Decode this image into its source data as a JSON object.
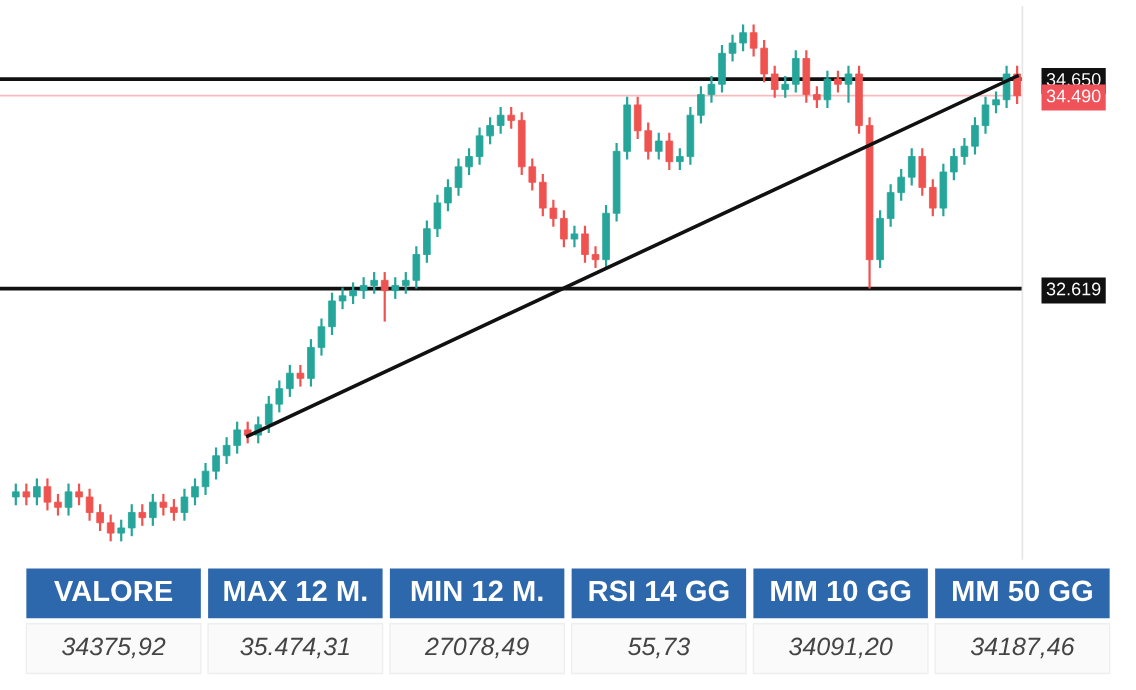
{
  "chart_data": [
    {
      "type": "candlestick",
      "categories": [
        null,
        null,
        null,
        null,
        null,
        null,
        null,
        null,
        null,
        null,
        null,
        null,
        null,
        null,
        null,
        null,
        null,
        null,
        null,
        null,
        null,
        null,
        null,
        null,
        null,
        null,
        null,
        null,
        null,
        null,
        null,
        null,
        null,
        null,
        null,
        null,
        null,
        null,
        null,
        null,
        null,
        null,
        null,
        null,
        null,
        null,
        null,
        null,
        null,
        null,
        null,
        null,
        null,
        null,
        null,
        null,
        null,
        null,
        null,
        null,
        null,
        null,
        null,
        null,
        null,
        null,
        null,
        null,
        null,
        null,
        null,
        null,
        null,
        null,
        null,
        null,
        null,
        null,
        null,
        null,
        null,
        null,
        null,
        null,
        null,
        null,
        null,
        null,
        null,
        null,
        null,
        null,
        null,
        null,
        null,
        null
      ],
      "colors": [
        "#26a69a",
        "#ef5350",
        "#26a69a",
        "#ef5350",
        "#ef5350",
        "#26a69a",
        "#ef5350",
        "#ef5350",
        "#ef5350",
        "#ef5350",
        "#26a69a",
        "#26a69a",
        "#ef5350",
        "#26a69a",
        "#ef5350",
        "#ef5350",
        "#26a69a",
        "#26a69a",
        "#26a69a",
        "#26a69a",
        "#26a69a",
        "#26a69a",
        "#ef5350",
        "#26a69a",
        "#26a69a",
        "#26a69a",
        "#26a69a",
        "#ef5350",
        "#26a69a",
        "#26a69a",
        "#26a69a",
        "#26a69a",
        "#26a69a",
        "#26a69a",
        "#26a69a",
        "#ef5350",
        "#26a69a",
        "#26a69a",
        "#26a69a",
        "#26a69a",
        "#26a69a",
        "#26a69a",
        "#26a69a",
        "#26a69a",
        "#26a69a",
        "#26a69a",
        "#26a69a",
        "#ef5350",
        "#ef5350",
        "#ef5350",
        "#ef5350",
        "#ef5350",
        "#ef5350",
        "#26a69a",
        "#ef5350",
        "#ef5350",
        "#26a69a",
        "#26a69a",
        "#26a69a",
        "#ef5350",
        "#ef5350",
        "#26a69a",
        "#ef5350",
        "#26a69a",
        "#26a69a",
        "#26a69a",
        "#26a69a",
        "#26a69a",
        "#26a69a",
        "#26a69a",
        "#ef5350",
        "#ef5350",
        "#ef5350",
        "#26a69a",
        "#26a69a",
        "#ef5350",
        "#ef5350",
        "#26a69a",
        "#ef5350",
        "#26a69a",
        "#ef5350",
        "#ef5350",
        "#26a69a",
        "#26a69a",
        "#26a69a",
        "#26a69a",
        "#ef5350",
        "#ef5350",
        "#26a69a",
        "#26a69a",
        "#26a69a",
        "#26a69a",
        "#26a69a",
        "#26a69a",
        "#26a69a",
        "#ef5350"
      ],
      "ohlc": [
        [
          30600,
          30730,
          30520,
          30650
        ],
        [
          30650,
          30730,
          30520,
          30600
        ],
        [
          30600,
          30780,
          30520,
          30700
        ],
        [
          30700,
          30780,
          30470,
          30550
        ],
        [
          30550,
          30630,
          30420,
          30500
        ],
        [
          30500,
          30730,
          30420,
          30650
        ],
        [
          30650,
          30730,
          30520,
          30600
        ],
        [
          30600,
          30680,
          30370,
          30450
        ],
        [
          30450,
          30530,
          30270,
          30350
        ],
        [
          30350,
          30430,
          30170,
          30250
        ],
        [
          30250,
          30380,
          30170,
          30300
        ],
        [
          30300,
          30530,
          30220,
          30450
        ],
        [
          30450,
          30530,
          30320,
          30400
        ],
        [
          30400,
          30630,
          30320,
          30550
        ],
        [
          30550,
          30630,
          30420,
          30500
        ],
        [
          30500,
          30580,
          30370,
          30450
        ],
        [
          30450,
          30680,
          30370,
          30600
        ],
        [
          30600,
          30780,
          30520,
          30700
        ],
        [
          30700,
          30930,
          30620,
          30850
        ],
        [
          30850,
          31080,
          30770,
          31000
        ],
        [
          31000,
          31180,
          30920,
          31100
        ],
        [
          31100,
          31330,
          31020,
          31250
        ],
        [
          31250,
          31330,
          31120,
          31200
        ],
        [
          31200,
          31380,
          31120,
          31300
        ],
        [
          31300,
          31580,
          31220,
          31500
        ],
        [
          31500,
          31730,
          31420,
          31650
        ],
        [
          31650,
          31880,
          31570,
          31800
        ],
        [
          31800,
          31880,
          31670,
          31750
        ],
        [
          31750,
          32130,
          31670,
          32050
        ],
        [
          32050,
          32330,
          31970,
          32250
        ],
        [
          32250,
          32580,
          32170,
          32500
        ],
        [
          32500,
          32630,
          32420,
          32550
        ],
        [
          32550,
          32680,
          32470,
          32600
        ],
        [
          32600,
          32730,
          32520,
          32650
        ],
        [
          32650,
          32780,
          32570,
          32700
        ],
        [
          32700,
          32780,
          32300,
          32600
        ],
        [
          32600,
          32730,
          32520,
          32650
        ],
        [
          32650,
          32780,
          32570,
          32700
        ],
        [
          32700,
          33030,
          32620,
          32950
        ],
        [
          32950,
          33280,
          32870,
          33200
        ],
        [
          33200,
          33530,
          33120,
          33450
        ],
        [
          33450,
          33680,
          33370,
          33600
        ],
        [
          33600,
          33880,
          33520,
          33800
        ],
        [
          33800,
          33980,
          33720,
          33900
        ],
        [
          33900,
          34180,
          33820,
          34100
        ],
        [
          34100,
          34280,
          34020,
          34200
        ],
        [
          34200,
          34380,
          34120,
          34300
        ],
        [
          34300,
          34380,
          34170,
          34250
        ],
        [
          34250,
          34330,
          33720,
          33800
        ],
        [
          33800,
          33880,
          33570,
          33650
        ],
        [
          33650,
          33730,
          33320,
          33400
        ],
        [
          33400,
          33480,
          33220,
          33300
        ],
        [
          33300,
          33380,
          33020,
          33100
        ],
        [
          33100,
          33230,
          33020,
          33150
        ],
        [
          33150,
          33230,
          32870,
          32950
        ],
        [
          32950,
          33030,
          32820,
          32900
        ],
        [
          32900,
          33430,
          32820,
          33350
        ],
        [
          33350,
          34030,
          33270,
          33950
        ],
        [
          33950,
          34480,
          33870,
          34400
        ],
        [
          34400,
          34480,
          34070,
          34150
        ],
        [
          34150,
          34230,
          33870,
          33950
        ],
        [
          33950,
          34130,
          33870,
          34050
        ],
        [
          34050,
          34130,
          33770,
          33850
        ],
        [
          33850,
          33980,
          33770,
          33900
        ],
        [
          33900,
          34380,
          33820,
          34300
        ],
        [
          34300,
          34580,
          34220,
          34500
        ],
        [
          34500,
          34680,
          34420,
          34600
        ],
        [
          34600,
          34980,
          34520,
          34900
        ],
        [
          34900,
          35080,
          34820,
          35000
        ],
        [
          35000,
          35180,
          34920,
          35100
        ],
        [
          35100,
          35180,
          34870,
          34950
        ],
        [
          34950,
          35030,
          34620,
          34700
        ],
        [
          34700,
          34780,
          34470,
          34550
        ],
        [
          34550,
          34680,
          34470,
          34600
        ],
        [
          34600,
          34930,
          34520,
          34850
        ],
        [
          34850,
          34930,
          34420,
          34500
        ],
        [
          34500,
          34580,
          34370,
          34450
        ],
        [
          34450,
          34730,
          34370,
          34650
        ],
        [
          34650,
          34730,
          34520,
          34600
        ],
        [
          34600,
          34780,
          34420,
          34700
        ],
        [
          34700,
          34780,
          34120,
          34200
        ],
        [
          34200,
          34280,
          32620,
          32900
        ],
        [
          32900,
          33380,
          32820,
          33300
        ],
        [
          33300,
          33630,
          33220,
          33550
        ],
        [
          33550,
          33780,
          33470,
          33700
        ],
        [
          33700,
          33980,
          33620,
          33900
        ],
        [
          33900,
          33980,
          33520,
          33600
        ],
        [
          33600,
          33680,
          33320,
          33400
        ],
        [
          33400,
          33830,
          33320,
          33750
        ],
        [
          33750,
          33980,
          33670,
          33900
        ],
        [
          33900,
          34080,
          33820,
          34000
        ],
        [
          34000,
          34280,
          33920,
          34200
        ],
        [
          34200,
          34480,
          34120,
          34400
        ],
        [
          34400,
          34530,
          34320,
          34450
        ],
        [
          34450,
          34780,
          34370,
          34700
        ],
        [
          34700,
          34780,
          34410,
          34490
        ]
      ],
      "series": [
        {
          "type": "line",
          "color": "#111111",
          "values": [
            null,
            null,
            null,
            null,
            null,
            null,
            null,
            null,
            null,
            null,
            null,
            null,
            null,
            null,
            null,
            null,
            null,
            null,
            null,
            null,
            null,
            null,
            31190,
            null,
            null,
            null,
            null,
            null,
            null,
            null,
            null,
            null,
            null,
            null,
            null,
            null,
            null,
            null,
            null,
            null,
            null,
            null,
            null,
            null,
            null,
            null,
            null,
            null,
            null,
            null,
            null,
            null,
            null,
            null,
            null,
            null,
            null,
            null,
            null,
            null,
            null,
            null,
            null,
            null,
            null,
            null,
            null,
            null,
            null,
            null,
            null,
            null,
            null,
            null,
            null,
            null,
            null,
            null,
            null,
            null,
            null,
            null,
            null,
            null,
            null,
            null,
            null,
            null,
            null,
            null,
            null,
            null,
            null,
            null,
            null,
            34680
          ]
        }
      ],
      "ref_lines": [
        {
          "axis": "y",
          "value": 34650,
          "color": "#111111"
        },
        {
          "axis": "y",
          "value": 34490,
          "color": "#f0525a"
        },
        {
          "axis": "y",
          "value": 32619,
          "color": "#111111"
        }
      ],
      "yticks": [
        {
          "value": 34650,
          "label": "34.650"
        },
        {
          "value": 34490,
          "label": "34.490"
        },
        {
          "value": 32619,
          "label": "32.619"
        }
      ],
      "ylim": [
        30000,
        35350
      ],
      "tick_labels": "y",
      "grid": false,
      "legend": false
    },
    {
      "type": "other",
      "categories": [
        "VALORE",
        "MAX 12 M.",
        "MIN 12 M.",
        "RSI 14 GG",
        "MM 10 GG",
        "MM 50 GG"
      ],
      "annotations": [
        "34375,92",
        "35.474,31",
        "27078,49",
        "55,73",
        "34091,20",
        "34187,46"
      ],
      "color": "#2e68ac"
    }
  ]
}
